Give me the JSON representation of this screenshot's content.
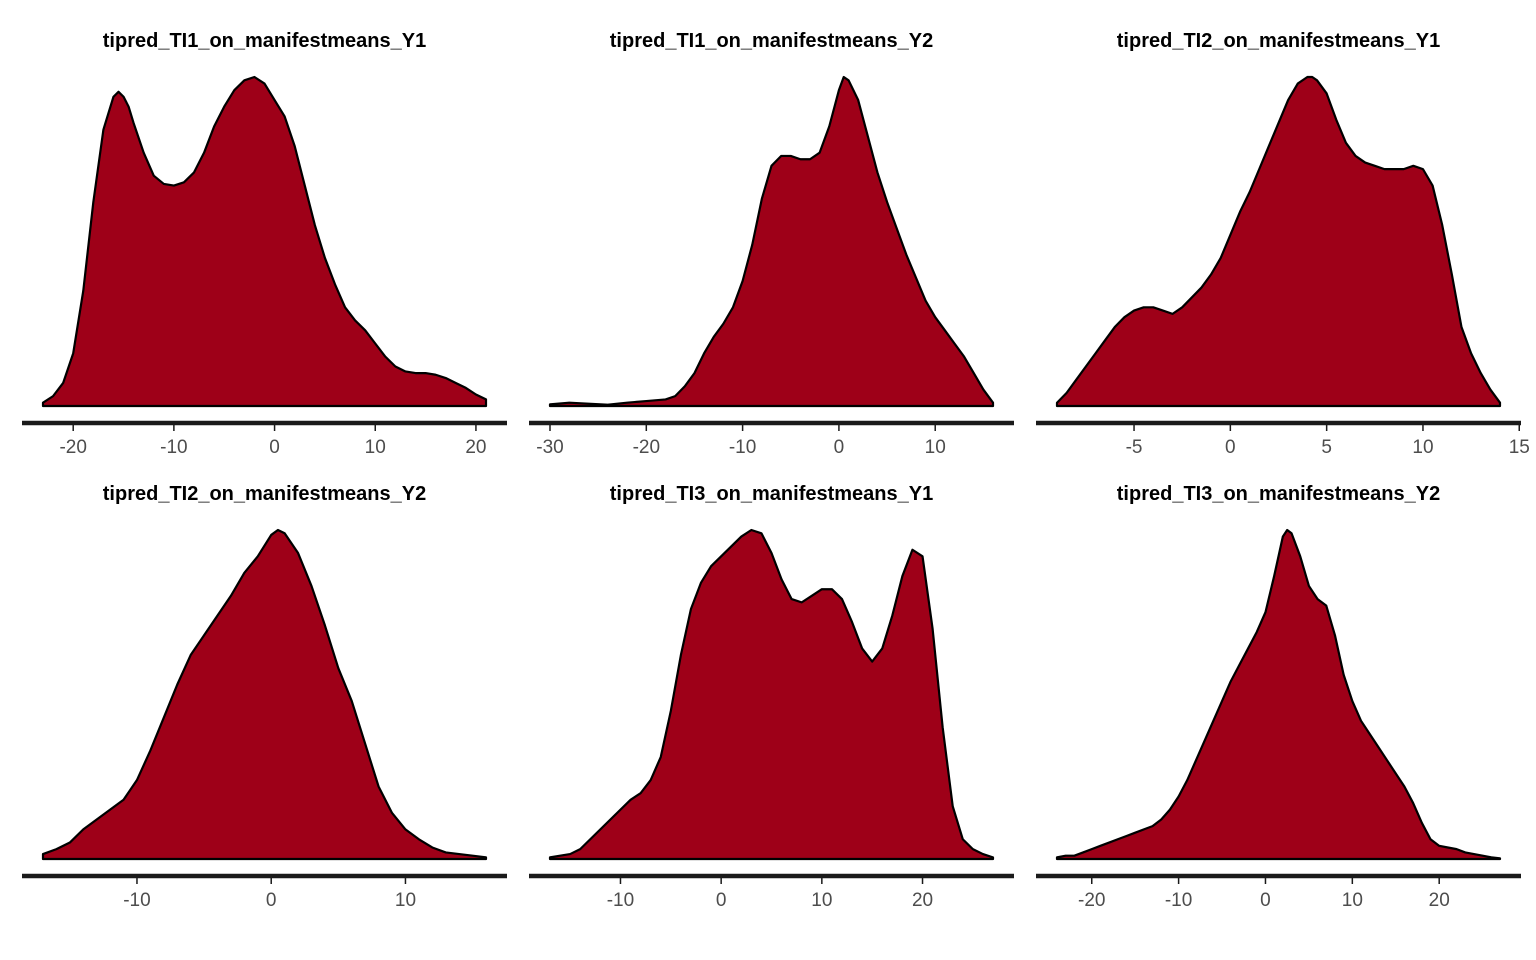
{
  "style": {
    "fill_color": "#9e0018",
    "stroke_color": "#000000",
    "axis_color": "#1a1a1a",
    "tick_text_color": "#4d4d4d"
  },
  "chart_data": [
    {
      "type": "area",
      "title": "tipred_TI1_on_manifestmeans_Y1",
      "xlabel": "",
      "ylabel": "",
      "xlim": [
        -23,
        21
      ],
      "xticks": [
        -20,
        -10,
        0,
        10,
        20
      ],
      "x": [
        -23,
        -22,
        -21,
        -20,
        -19,
        -18,
        -17,
        -16,
        -15.5,
        -15,
        -14.5,
        -14,
        -13,
        -12,
        -11,
        -10,
        -9,
        -8,
        -7,
        -6,
        -5,
        -4,
        -3,
        -2,
        -1,
        0,
        1,
        2,
        3,
        4,
        5,
        6,
        7,
        8,
        9,
        10,
        11,
        12,
        13,
        14,
        15,
        16,
        17,
        18,
        19,
        20,
        21
      ],
      "y": [
        0.01,
        0.03,
        0.07,
        0.16,
        0.35,
        0.62,
        0.84,
        0.94,
        0.955,
        0.94,
        0.91,
        0.86,
        0.77,
        0.7,
        0.675,
        0.67,
        0.68,
        0.71,
        0.77,
        0.85,
        0.91,
        0.96,
        0.99,
        1.0,
        0.98,
        0.93,
        0.88,
        0.79,
        0.67,
        0.55,
        0.45,
        0.37,
        0.3,
        0.26,
        0.23,
        0.19,
        0.15,
        0.12,
        0.105,
        0.1,
        0.1,
        0.095,
        0.085,
        0.07,
        0.055,
        0.035,
        0.02
      ]
    },
    {
      "type": "area",
      "title": "tipred_TI1_on_manifestmeans_Y2",
      "xlabel": "",
      "ylabel": "",
      "xlim": [
        -30,
        16
      ],
      "xticks": [
        -30,
        -20,
        -10,
        0,
        10
      ],
      "x": [
        -30,
        -28,
        -26,
        -24,
        -22,
        -20,
        -18,
        -17,
        -16,
        -15,
        -14,
        -13,
        -12,
        -11,
        -10,
        -9,
        -8,
        -7,
        -6,
        -5,
        -4,
        -3,
        -2,
        -1,
        0,
        0.5,
        1,
        2,
        3,
        4,
        5,
        6,
        7,
        8,
        9,
        10,
        11,
        12,
        13,
        14,
        15,
        16
      ],
      "y": [
        0.005,
        0.01,
        0.007,
        0.004,
        0.01,
        0.015,
        0.02,
        0.03,
        0.06,
        0.1,
        0.16,
        0.21,
        0.25,
        0.3,
        0.38,
        0.49,
        0.63,
        0.73,
        0.76,
        0.76,
        0.75,
        0.75,
        0.77,
        0.85,
        0.96,
        1.0,
        0.99,
        0.93,
        0.82,
        0.71,
        0.62,
        0.54,
        0.46,
        0.39,
        0.32,
        0.27,
        0.23,
        0.19,
        0.15,
        0.1,
        0.05,
        0.01
      ]
    },
    {
      "type": "area",
      "title": "tipred_TI2_on_manifestmeans_Y1",
      "xlabel": "",
      "ylabel": "",
      "xlim": [
        -9,
        14
      ],
      "xticks": [
        -5,
        0,
        5,
        10,
        15
      ],
      "x": [
        -9,
        -8.5,
        -8,
        -7.5,
        -7,
        -6.5,
        -6,
        -5.5,
        -5,
        -4.5,
        -4,
        -3.5,
        -3,
        -2.5,
        -2,
        -1.5,
        -1,
        -0.5,
        0,
        0.5,
        1,
        1.5,
        2,
        2.5,
        3,
        3.5,
        4,
        4.25,
        4.5,
        5,
        5.5,
        6,
        6.5,
        7,
        7.5,
        8,
        8.5,
        9,
        9.5,
        10,
        10.5,
        11,
        11.5,
        12,
        12.5,
        13,
        13.5,
        14
      ],
      "y": [
        0.01,
        0.04,
        0.08,
        0.12,
        0.16,
        0.2,
        0.24,
        0.27,
        0.29,
        0.3,
        0.3,
        0.29,
        0.28,
        0.3,
        0.33,
        0.36,
        0.4,
        0.45,
        0.52,
        0.59,
        0.65,
        0.72,
        0.79,
        0.86,
        0.93,
        0.98,
        1.0,
        1.0,
        0.99,
        0.95,
        0.87,
        0.8,
        0.76,
        0.74,
        0.73,
        0.72,
        0.72,
        0.72,
        0.73,
        0.72,
        0.67,
        0.55,
        0.4,
        0.24,
        0.16,
        0.1,
        0.05,
        0.01
      ]
    },
    {
      "type": "area",
      "title": "tipred_TI2_on_manifestmeans_Y2",
      "xlabel": "",
      "ylabel": "",
      "xlim": [
        -17,
        16
      ],
      "xticks": [
        -10,
        0,
        10
      ],
      "x": [
        -17,
        -16,
        -15,
        -14,
        -13,
        -12,
        -11,
        -10,
        -9,
        -8,
        -7,
        -6,
        -5,
        -4,
        -3,
        -2,
        -1,
        0,
        0.5,
        1,
        2,
        3,
        4,
        5,
        6,
        7,
        8,
        9,
        10,
        11,
        12,
        13,
        14,
        15,
        16
      ],
      "y": [
        0.015,
        0.03,
        0.05,
        0.09,
        0.12,
        0.15,
        0.18,
        0.24,
        0.33,
        0.43,
        0.53,
        0.62,
        0.68,
        0.74,
        0.8,
        0.87,
        0.92,
        0.985,
        1.0,
        0.99,
        0.93,
        0.83,
        0.71,
        0.58,
        0.48,
        0.35,
        0.22,
        0.14,
        0.09,
        0.06,
        0.035,
        0.02,
        0.015,
        0.01,
        0.005
      ]
    },
    {
      "type": "area",
      "title": "tipred_TI3_on_manifestmeans_Y1",
      "xlabel": "",
      "ylabel": "",
      "xlim": [
        -17,
        27
      ],
      "xticks": [
        -10,
        0,
        10,
        20
      ],
      "x": [
        -17,
        -16,
        -15,
        -14,
        -13,
        -12,
        -11,
        -10,
        -9,
        -8,
        -7,
        -6,
        -5,
        -4,
        -3,
        -2,
        -1,
        0,
        1,
        2,
        3,
        4,
        5,
        6,
        7,
        8,
        9,
        10,
        11,
        12,
        13,
        14,
        15,
        16,
        17,
        18,
        19,
        20,
        21,
        22,
        23,
        24,
        25,
        26,
        27
      ],
      "y": [
        0.005,
        0.01,
        0.015,
        0.03,
        0.06,
        0.09,
        0.12,
        0.15,
        0.18,
        0.2,
        0.24,
        0.31,
        0.45,
        0.62,
        0.76,
        0.84,
        0.89,
        0.92,
        0.95,
        0.98,
        1.0,
        0.99,
        0.93,
        0.85,
        0.79,
        0.78,
        0.8,
        0.82,
        0.82,
        0.79,
        0.72,
        0.64,
        0.6,
        0.64,
        0.74,
        0.86,
        0.94,
        0.92,
        0.7,
        0.4,
        0.16,
        0.06,
        0.03,
        0.015,
        0.005
      ]
    },
    {
      "type": "area",
      "title": "tipred_TI3_on_manifestmeans_Y2",
      "xlabel": "",
      "ylabel": "",
      "xlim": [
        -24,
        27
      ],
      "xticks": [
        -20,
        -10,
        0,
        10,
        20
      ],
      "x": [
        -24,
        -23,
        -22,
        -21,
        -20,
        -19,
        -18,
        -17,
        -16,
        -15,
        -14,
        -13,
        -12,
        -11,
        -10,
        -9,
        -8,
        -7,
        -6,
        -5,
        -4,
        -3,
        -2,
        -1,
        0,
        1,
        2,
        2.5,
        3,
        4,
        5,
        6,
        7,
        8,
        9,
        10,
        11,
        12,
        13,
        14,
        15,
        16,
        17,
        18,
        19,
        20,
        21,
        22,
        23,
        24,
        25,
        26,
        27
      ],
      "y": [
        0.005,
        0.01,
        0.01,
        0.02,
        0.03,
        0.04,
        0.05,
        0.06,
        0.07,
        0.08,
        0.09,
        0.1,
        0.12,
        0.15,
        0.19,
        0.24,
        0.3,
        0.36,
        0.42,
        0.48,
        0.54,
        0.59,
        0.64,
        0.69,
        0.75,
        0.86,
        0.98,
        1.0,
        0.99,
        0.92,
        0.83,
        0.79,
        0.77,
        0.68,
        0.56,
        0.48,
        0.42,
        0.38,
        0.34,
        0.3,
        0.26,
        0.22,
        0.17,
        0.11,
        0.06,
        0.04,
        0.035,
        0.03,
        0.02,
        0.015,
        0.01,
        0.005,
        0.002
      ]
    }
  ]
}
